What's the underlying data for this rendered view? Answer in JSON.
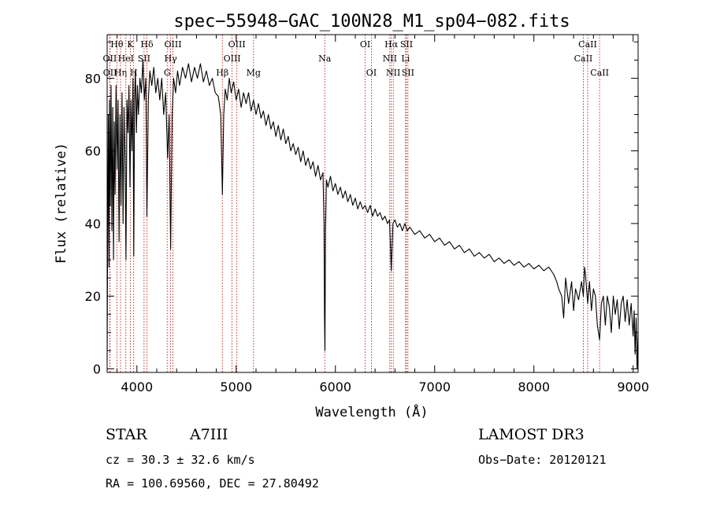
{
  "chart_data": {
    "type": "line",
    "title": "spec−55948−GAC_100N28_M1_sp04−082.fits",
    "xlabel": "Wavelength (Å)",
    "ylabel": "Flux (relative)",
    "xlim": [
      3700,
      9050
    ],
    "ylim": [
      -1,
      92
    ],
    "xticks": [
      4000,
      5000,
      6000,
      7000,
      8000,
      9000
    ],
    "yticks": [
      0,
      20,
      40,
      60,
      80
    ],
    "series": [
      {
        "name": "flux",
        "points": [
          [
            3700,
            2
          ],
          [
            3705,
            35
          ],
          [
            3712,
            70
          ],
          [
            3718,
            28
          ],
          [
            3725,
            74
          ],
          [
            3732,
            45
          ],
          [
            3740,
            78
          ],
          [
            3748,
            38
          ],
          [
            3756,
            72
          ],
          [
            3764,
            30
          ],
          [
            3772,
            68
          ],
          [
            3780,
            48
          ],
          [
            3790,
            78
          ],
          [
            3800,
            55
          ],
          [
            3810,
            74
          ],
          [
            3820,
            35
          ],
          [
            3830,
            70
          ],
          [
            3840,
            45
          ],
          [
            3850,
            76
          ],
          [
            3860,
            40
          ],
          [
            3870,
            72
          ],
          [
            3880,
            58
          ],
          [
            3890,
            30
          ],
          [
            3900,
            74
          ],
          [
            3910,
            65
          ],
          [
            3920,
            78
          ],
          [
            3930,
            50
          ],
          [
            3940,
            74
          ],
          [
            3950,
            60
          ],
          [
            3960,
            80
          ],
          [
            3968,
            31
          ],
          [
            3976,
            74
          ],
          [
            3985,
            82
          ],
          [
            3995,
            65
          ],
          [
            4005,
            78
          ],
          [
            4015,
            70
          ],
          [
            4030,
            80
          ],
          [
            4045,
            76
          ],
          [
            4060,
            85
          ],
          [
            4075,
            74
          ],
          [
            4090,
            80
          ],
          [
            4101,
            42
          ],
          [
            4115,
            74
          ],
          [
            4130,
            82
          ],
          [
            4150,
            78
          ],
          [
            4170,
            83
          ],
          [
            4190,
            76
          ],
          [
            4210,
            80
          ],
          [
            4230,
            74
          ],
          [
            4250,
            80
          ],
          [
            4270,
            70
          ],
          [
            4290,
            76
          ],
          [
            4310,
            58
          ],
          [
            4325,
            70
          ],
          [
            4340,
            33
          ],
          [
            4355,
            70
          ],
          [
            4370,
            80
          ],
          [
            4390,
            76
          ],
          [
            4410,
            82
          ],
          [
            4430,
            78
          ],
          [
            4460,
            83
          ],
          [
            4490,
            80
          ],
          [
            4520,
            84
          ],
          [
            4550,
            79
          ],
          [
            4580,
            83
          ],
          [
            4610,
            80
          ],
          [
            4640,
            84
          ],
          [
            4670,
            79
          ],
          [
            4700,
            82
          ],
          [
            4730,
            78
          ],
          [
            4760,
            80
          ],
          [
            4790,
            76
          ],
          [
            4820,
            75
          ],
          [
            4845,
            70
          ],
          [
            4861,
            48
          ],
          [
            4875,
            70
          ],
          [
            4890,
            77
          ],
          [
            4910,
            74
          ],
          [
            4930,
            80
          ],
          [
            4950,
            76
          ],
          [
            4975,
            79
          ],
          [
            5000,
            74
          ],
          [
            5025,
            77
          ],
          [
            5050,
            72
          ],
          [
            5075,
            76
          ],
          [
            5100,
            73
          ],
          [
            5125,
            76
          ],
          [
            5150,
            71
          ],
          [
            5175,
            74
          ],
          [
            5200,
            70
          ],
          [
            5225,
            73
          ],
          [
            5250,
            69
          ],
          [
            5275,
            71
          ],
          [
            5300,
            67
          ],
          [
            5325,
            70
          ],
          [
            5350,
            66
          ],
          [
            5375,
            68
          ],
          [
            5400,
            64
          ],
          [
            5425,
            67
          ],
          [
            5450,
            63
          ],
          [
            5475,
            66
          ],
          [
            5500,
            62
          ],
          [
            5525,
            64
          ],
          [
            5550,
            60
          ],
          [
            5575,
            62
          ],
          [
            5600,
            59
          ],
          [
            5625,
            61
          ],
          [
            5650,
            57
          ],
          [
            5675,
            60
          ],
          [
            5700,
            56
          ],
          [
            5725,
            58
          ],
          [
            5750,
            55
          ],
          [
            5775,
            57
          ],
          [
            5800,
            53
          ],
          [
            5825,
            56
          ],
          [
            5850,
            52
          ],
          [
            5875,
            54
          ],
          [
            5885,
            40
          ],
          [
            5890,
            15
          ],
          [
            5895,
            5
          ],
          [
            5900,
            38
          ],
          [
            5910,
            52
          ],
          [
            5925,
            50
          ],
          [
            5950,
            53
          ],
          [
            5975,
            49
          ],
          [
            6000,
            51
          ],
          [
            6025,
            48
          ],
          [
            6050,
            50
          ],
          [
            6075,
            47
          ],
          [
            6100,
            49
          ],
          [
            6125,
            46
          ],
          [
            6150,
            48
          ],
          [
            6175,
            45
          ],
          [
            6200,
            47
          ],
          [
            6225,
            44
          ],
          [
            6250,
            46
          ],
          [
            6275,
            44
          ],
          [
            6300,
            45
          ],
          [
            6325,
            43
          ],
          [
            6350,
            45
          ],
          [
            6375,
            42
          ],
          [
            6400,
            44
          ],
          [
            6425,
            42
          ],
          [
            6450,
            43
          ],
          [
            6475,
            41
          ],
          [
            6500,
            42
          ],
          [
            6525,
            40
          ],
          [
            6545,
            41
          ],
          [
            6555,
            33
          ],
          [
            6563,
            27
          ],
          [
            6570,
            33
          ],
          [
            6580,
            40
          ],
          [
            6600,
            41
          ],
          [
            6625,
            39
          ],
          [
            6650,
            40
          ],
          [
            6675,
            38
          ],
          [
            6700,
            40
          ],
          [
            6725,
            38
          ],
          [
            6750,
            39
          ],
          [
            6800,
            37
          ],
          [
            6850,
            38
          ],
          [
            6900,
            36
          ],
          [
            6950,
            37
          ],
          [
            7000,
            35
          ],
          [
            7050,
            36
          ],
          [
            7100,
            34
          ],
          [
            7150,
            35
          ],
          [
            7200,
            33
          ],
          [
            7250,
            34
          ],
          [
            7300,
            32
          ],
          [
            7350,
            33
          ],
          [
            7400,
            31
          ],
          [
            7450,
            32
          ],
          [
            7500,
            30.5
          ],
          [
            7550,
            31.5
          ],
          [
            7600,
            29.5
          ],
          [
            7650,
            30.5
          ],
          [
            7700,
            29
          ],
          [
            7750,
            30
          ],
          [
            7800,
            28.5
          ],
          [
            7850,
            29.5
          ],
          [
            7900,
            28
          ],
          [
            7950,
            29
          ],
          [
            8000,
            27.5
          ],
          [
            8050,
            28.5
          ],
          [
            8100,
            27
          ],
          [
            8150,
            28
          ],
          [
            8200,
            26
          ],
          [
            8230,
            24
          ],
          [
            8250,
            22
          ],
          [
            8280,
            20
          ],
          [
            8300,
            14
          ],
          [
            8320,
            25
          ],
          [
            8350,
            18
          ],
          [
            8380,
            24
          ],
          [
            8400,
            16
          ],
          [
            8420,
            22
          ],
          [
            8450,
            19
          ],
          [
            8480,
            24
          ],
          [
            8498,
            20
          ],
          [
            8510,
            28
          ],
          [
            8520,
            26
          ],
          [
            8542,
            18
          ],
          [
            8560,
            24
          ],
          [
            8580,
            16
          ],
          [
            8600,
            22
          ],
          [
            8620,
            20
          ],
          [
            8640,
            12
          ],
          [
            8662,
            8
          ],
          [
            8680,
            18
          ],
          [
            8700,
            20
          ],
          [
            8720,
            12
          ],
          [
            8740,
            20
          ],
          [
            8760,
            17
          ],
          [
            8780,
            10
          ],
          [
            8800,
            20
          ],
          [
            8820,
            15
          ],
          [
            8840,
            19
          ],
          [
            8860,
            11
          ],
          [
            8880,
            18
          ],
          [
            8900,
            20
          ],
          [
            8920,
            13
          ],
          [
            8940,
            19
          ],
          [
            8960,
            12
          ],
          [
            8980,
            18
          ],
          [
            9000,
            9
          ],
          [
            9010,
            16
          ],
          [
            9020,
            4
          ],
          [
            9030,
            14
          ],
          [
            9040,
            0
          ],
          [
            9050,
            10
          ]
        ]
      }
    ],
    "lines": [
      {
        "label": "Hθ",
        "wavelength": 3798,
        "row": 0,
        "anchor": "end",
        "dx": 0
      },
      {
        "label": "OII",
        "wavelength": 3727,
        "row": 1,
        "anchor": "middle",
        "dx": 0
      },
      {
        "label": "OII",
        "wavelength": 3729,
        "row": 2,
        "anchor": "middle",
        "dx": 0
      },
      {
        "label": "Hη",
        "wavelength": 3835,
        "row": 2,
        "anchor": "middle",
        "dx": 0
      },
      {
        "label": "HeI",
        "wavelength": 3889,
        "row": 1,
        "anchor": "middle",
        "dx": 0
      },
      {
        "label": "K",
        "wavelength": 3934,
        "row": 0,
        "anchor": "middle",
        "dx": 0
      },
      {
        "label": "H",
        "wavelength": 3968,
        "row": 2,
        "anchor": "middle",
        "dx": 0
      },
      {
        "label": "SII",
        "wavelength": 4072,
        "row": 1,
        "anchor": "middle",
        "dx": 0
      },
      {
        "label": "Hδ",
        "wavelength": 4101,
        "row": 0,
        "anchor": "middle",
        "dx": 0
      },
      {
        "label": "G",
        "wavelength": 4305,
        "row": 2,
        "anchor": "middle",
        "dx": 0
      },
      {
        "label": "Hγ",
        "wavelength": 4340,
        "row": 1,
        "anchor": "middle",
        "dx": 0
      },
      {
        "label": "OIII",
        "wavelength": 4363,
        "row": 0,
        "anchor": "middle",
        "dx": 0
      },
      {
        "label": "Hβ",
        "wavelength": 4861,
        "row": 2,
        "anchor": "middle",
        "dx": 0
      },
      {
        "label": "OIII",
        "wavelength": 4959,
        "row": 1,
        "anchor": "middle",
        "dx": 0
      },
      {
        "label": "OIII",
        "wavelength": 5007,
        "row": 0,
        "anchor": "middle",
        "dx": 0
      },
      {
        "label": "Mg",
        "wavelength": 5175,
        "row": 2,
        "anchor": "middle",
        "dx": 0
      },
      {
        "label": "Na",
        "wavelength": 5893,
        "row": 1,
        "anchor": "middle",
        "dx": 0
      },
      {
        "label": "OI",
        "wavelength": 6300,
        "row": 0,
        "anchor": "middle",
        "dx": 0
      },
      {
        "label": "OI",
        "wavelength": 6363,
        "row": 2,
        "anchor": "middle",
        "dx": 0
      },
      {
        "label": "NII",
        "wavelength": 6548,
        "row": 1,
        "anchor": "middle",
        "dx": 0
      },
      {
        "label": "Hα",
        "wavelength": 6563,
        "row": 0,
        "anchor": "middle",
        "dx": 0
      },
      {
        "label": "NII",
        "wavelength": 6583,
        "row": 2,
        "anchor": "middle",
        "dx": 0
      },
      {
        "label": "Li",
        "wavelength": 6707,
        "row": 1,
        "anchor": "middle",
        "dx": 0
      },
      {
        "label": "SII",
        "wavelength": 6716,
        "row": 0,
        "anchor": "middle",
        "dx": 0
      },
      {
        "label": "SII",
        "wavelength": 6731,
        "row": 2,
        "anchor": "middle",
        "dx": 0
      },
      {
        "label": "CaII",
        "wavelength": 8498,
        "row": 1,
        "anchor": "middle",
        "dx": 0
      },
      {
        "label": "CaII",
        "wavelength": 8542,
        "row": 0,
        "anchor": "middle",
        "dx": 0
      },
      {
        "label": "CaII",
        "wavelength": 8662,
        "row": 2,
        "anchor": "middle",
        "dx": 0
      }
    ]
  },
  "info": {
    "object_class": "STAR",
    "subclass": "A7III",
    "survey": "LAMOST  DR3",
    "cz": "cz = 30.3 ± 32.6 km/s",
    "obs_date": "Obs−Date: 20120121",
    "coords": "RA = 100.69560, DEC =  27.80492"
  }
}
